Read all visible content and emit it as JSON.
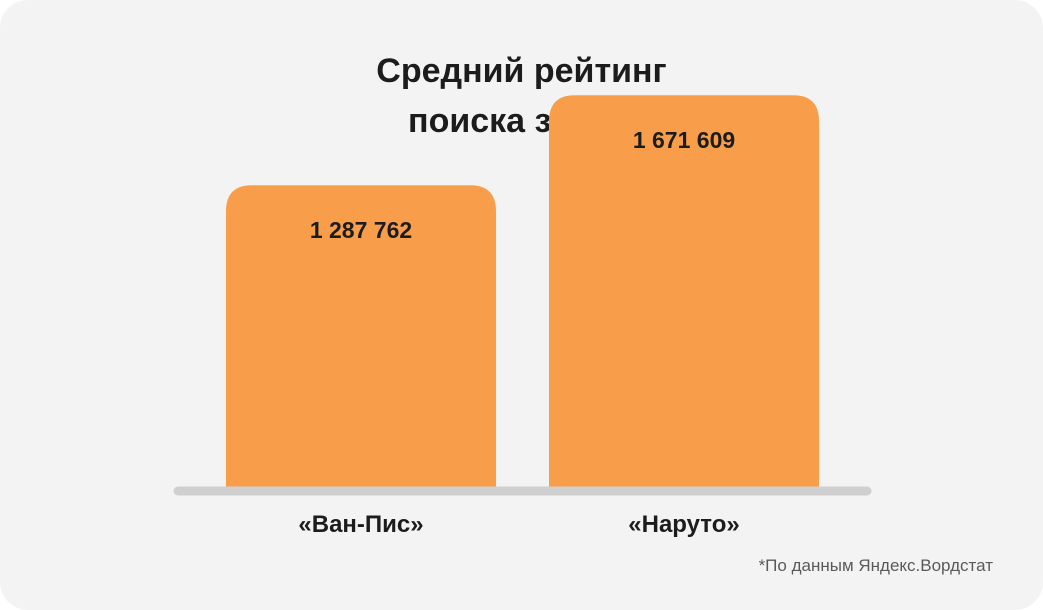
{
  "chart_data": {
    "type": "bar",
    "title_lines": [
      "Средний рейтинг",
      "поиска за год"
    ],
    "categories": [
      "«Ван-Пис»",
      "«Наруто»"
    ],
    "values": [
      1287762,
      1671609
    ],
    "value_labels": [
      "1 287 762",
      "1 671 609"
    ],
    "ylim": [
      0,
      1950000
    ],
    "grid": false,
    "legend": "none",
    "bar_color": "#f89e4a",
    "baseline_color": "#cfcfcf"
  },
  "footnote": "*По данным Яндекс.Вордстат"
}
